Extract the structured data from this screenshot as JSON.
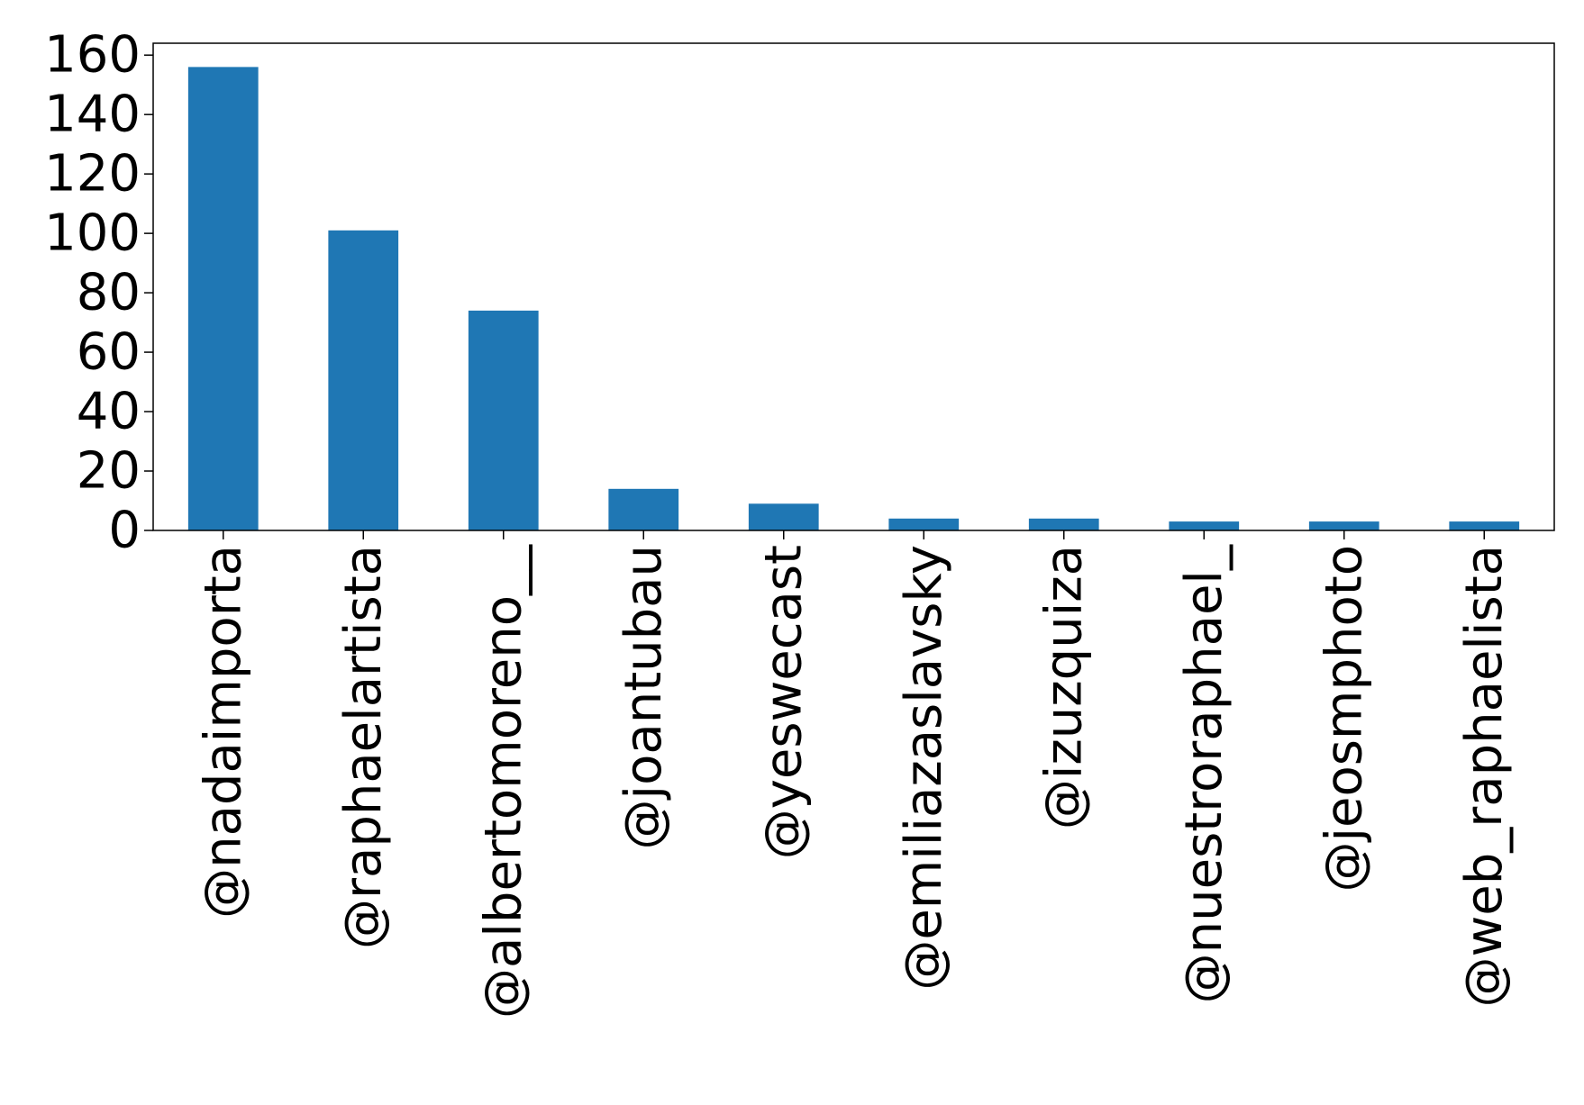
{
  "chart_data": {
    "type": "bar",
    "title": "",
    "xlabel": "",
    "ylabel": "",
    "categories": [
      "@nadaimporta",
      "@raphaelartista",
      "@albertomoreno__",
      "@joantubau",
      "@yeswecast",
      "@emiliazaslavsky",
      "@izuzquiza",
      "@nuestroraphael_",
      "@jeosmphoto",
      "@web_raphaelista"
    ],
    "values": [
      156,
      101,
      74,
      14,
      9,
      4,
      4,
      3,
      3,
      3
    ],
    "ylim": [
      0,
      164
    ],
    "yticks": [
      0,
      20,
      40,
      60,
      80,
      100,
      120,
      140,
      160
    ],
    "grid": false,
    "legend": "none",
    "bar_color": "#1f77b4",
    "axis_color": "#000000"
  }
}
